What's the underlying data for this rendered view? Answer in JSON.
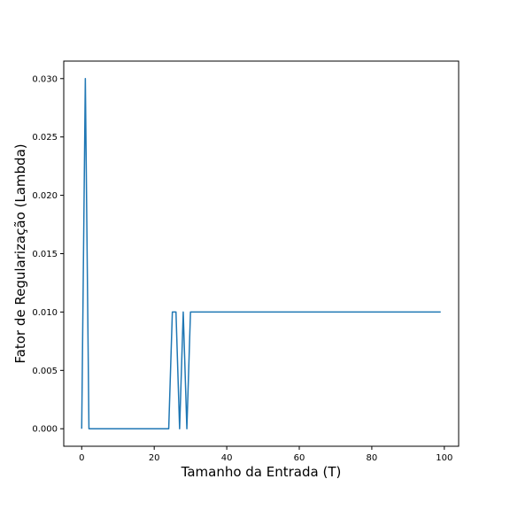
{
  "chart_data": {
    "type": "line",
    "title": "",
    "xlabel": "Tamanho da Entrada (T)",
    "ylabel": "Fator de Regularização (Lambda)",
    "xlim": [
      -4.95,
      103.95
    ],
    "ylim": [
      -0.0015,
      0.0315
    ],
    "grid": false,
    "legend": "none",
    "x_ticks": [
      0,
      20,
      40,
      60,
      80,
      100
    ],
    "x_tick_labels": [
      "0",
      "20",
      "40",
      "60",
      "80",
      "100"
    ],
    "y_ticks": [
      0.0,
      0.005,
      0.01,
      0.015,
      0.02,
      0.025,
      0.03
    ],
    "y_tick_labels": [
      "0.000",
      "0.005",
      "0.010",
      "0.015",
      "0.020",
      "0.025",
      "0.030"
    ],
    "series": [
      {
        "color": "#1f77b4",
        "x": [
          0,
          1,
          2,
          24,
          25,
          26,
          27,
          28,
          29,
          30,
          99
        ],
        "y": [
          0.0,
          0.03,
          0.0,
          0.0,
          0.01,
          0.01,
          0.0,
          0.01,
          0.0,
          0.01,
          0.01
        ]
      }
    ]
  }
}
